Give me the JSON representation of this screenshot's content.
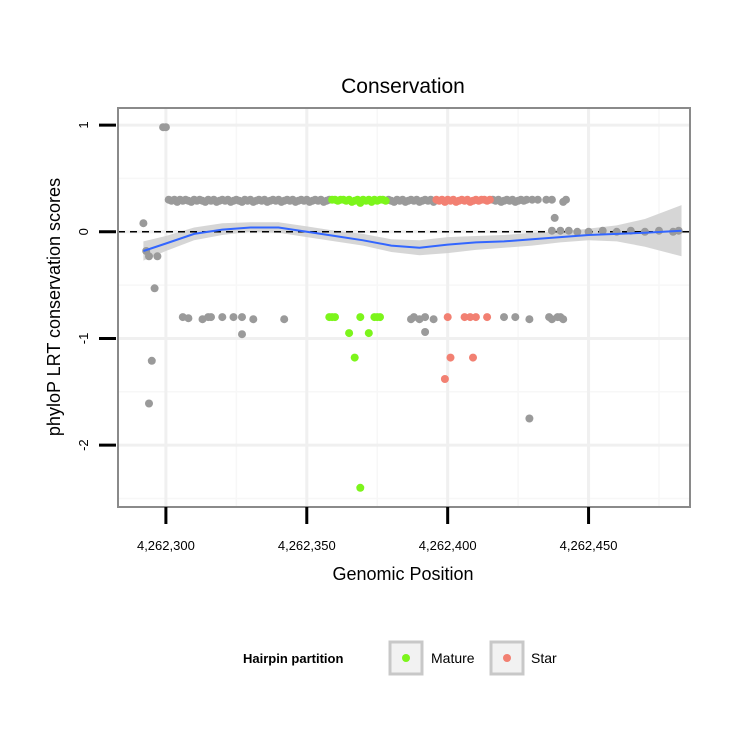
{
  "chart_data": {
    "type": "scatter",
    "title": "Conservation",
    "xlabel": "Genomic Position",
    "ylabel": "phyloP LRT conservation scores",
    "xlim": [
      4262283,
      4262486
    ],
    "ylim": [
      -2.58,
      1.16
    ],
    "x_ticks": [
      4262300,
      4262350,
      4262400,
      4262450
    ],
    "x_tick_labels": [
      "4,262,300",
      "4,262,350",
      "4,262,400",
      "4,262,450"
    ],
    "y_ticks": [
      1,
      0,
      -1,
      -2
    ],
    "y_tick_labels": [
      "1",
      "0",
      "-1",
      "-2"
    ],
    "grid": true,
    "reference_line": {
      "y": 0,
      "style": "dashed",
      "color": "#000000"
    },
    "colors": {
      "other": "#9a9a9a",
      "mature": "#7cf51b",
      "star": "#f28072",
      "smooth": "#3366ff",
      "band": "#cfcfcf"
    },
    "legend": {
      "title": "Hairpin partition",
      "position": "bottom",
      "entries": [
        {
          "label": "Mature",
          "color": "#7cf51b"
        },
        {
          "label": "Star",
          "color": "#f28072"
        }
      ]
    },
    "series": [
      {
        "group": "other",
        "points": [
          [
            4262299,
            0.98
          ],
          [
            4262300,
            0.98
          ],
          [
            4262292,
            0.08
          ],
          [
            4262293,
            -0.18
          ],
          [
            4262294,
            -0.23
          ],
          [
            4262297,
            -0.23
          ],
          [
            4262296,
            -0.53
          ],
          [
            4262295,
            -1.21
          ],
          [
            4262294,
            -1.61
          ],
          [
            4262301,
            0.3
          ],
          [
            4262302,
            0.29
          ],
          [
            4262303,
            0.3
          ],
          [
            4262304,
            0.28
          ],
          [
            4262305,
            0.3
          ],
          [
            4262306,
            0.29
          ],
          [
            4262307,
            0.3
          ],
          [
            4262308,
            0.29
          ],
          [
            4262309,
            0.28
          ],
          [
            4262310,
            0.3
          ],
          [
            4262311,
            0.29
          ],
          [
            4262312,
            0.3
          ],
          [
            4262313,
            0.29
          ],
          [
            4262314,
            0.28
          ],
          [
            4262315,
            0.3
          ],
          [
            4262316,
            0.29
          ],
          [
            4262317,
            0.3
          ],
          [
            4262318,
            0.28
          ],
          [
            4262319,
            0.29
          ],
          [
            4262320,
            0.3
          ],
          [
            4262321,
            0.29
          ],
          [
            4262322,
            0.3
          ],
          [
            4262323,
            0.28
          ],
          [
            4262324,
            0.29
          ],
          [
            4262325,
            0.3
          ],
          [
            4262326,
            0.29
          ],
          [
            4262327,
            0.28
          ],
          [
            4262328,
            0.3
          ],
          [
            4262329,
            0.29
          ],
          [
            4262330,
            0.3
          ],
          [
            4262331,
            0.28
          ],
          [
            4262332,
            0.29
          ],
          [
            4262333,
            0.3
          ],
          [
            4262334,
            0.29
          ],
          [
            4262335,
            0.3
          ],
          [
            4262336,
            0.28
          ],
          [
            4262337,
            0.29
          ],
          [
            4262338,
            0.3
          ],
          [
            4262339,
            0.29
          ],
          [
            4262340,
            0.3
          ],
          [
            4262341,
            0.28
          ],
          [
            4262342,
            0.29
          ],
          [
            4262343,
            0.3
          ],
          [
            4262344,
            0.29
          ],
          [
            4262345,
            0.3
          ],
          [
            4262346,
            0.28
          ],
          [
            4262347,
            0.29
          ],
          [
            4262348,
            0.3
          ],
          [
            4262349,
            0.29
          ],
          [
            4262350,
            0.3
          ],
          [
            4262351,
            0.28
          ],
          [
            4262352,
            0.29
          ],
          [
            4262353,
            0.3
          ],
          [
            4262354,
            0.29
          ],
          [
            4262355,
            0.3
          ],
          [
            4262356,
            0.28
          ],
          [
            4262357,
            0.29
          ],
          [
            4262358,
            0.3
          ],
          [
            4262379,
            0.3
          ],
          [
            4262380,
            0.29
          ],
          [
            4262381,
            0.28
          ],
          [
            4262382,
            0.3
          ],
          [
            4262383,
            0.29
          ],
          [
            4262384,
            0.3
          ],
          [
            4262385,
            0.28
          ],
          [
            4262386,
            0.29
          ],
          [
            4262387,
            0.3
          ],
          [
            4262388,
            0.29
          ],
          [
            4262389,
            0.3
          ],
          [
            4262390,
            0.28
          ],
          [
            4262391,
            0.29
          ],
          [
            4262392,
            0.3
          ],
          [
            4262393,
            0.29
          ],
          [
            4262394,
            0.3
          ],
          [
            4262395,
            0.28
          ],
          [
            4262416,
            0.3
          ],
          [
            4262417,
            0.29
          ],
          [
            4262418,
            0.3
          ],
          [
            4262419,
            0.28
          ],
          [
            4262420,
            0.29
          ],
          [
            4262421,
            0.3
          ],
          [
            4262422,
            0.29
          ],
          [
            4262423,
            0.3
          ],
          [
            4262424,
            0.28
          ],
          [
            4262425,
            0.29
          ],
          [
            4262426,
            0.3
          ],
          [
            4262427,
            0.29
          ],
          [
            4262428,
            0.3
          ],
          [
            4262430,
            0.3
          ],
          [
            4262432,
            0.3
          ],
          [
            4262435,
            0.3
          ],
          [
            4262437,
            0.3
          ],
          [
            4262441,
            0.28
          ],
          [
            4262442,
            0.3
          ],
          [
            4262438,
            0.13
          ],
          [
            4262306,
            -0.8
          ],
          [
            4262308,
            -0.81
          ],
          [
            4262313,
            -0.82
          ],
          [
            4262315,
            -0.8
          ],
          [
            4262316,
            -0.8
          ],
          [
            4262320,
            -0.8
          ],
          [
            4262324,
            -0.8
          ],
          [
            4262327,
            -0.8
          ],
          [
            4262327,
            -0.96
          ],
          [
            4262331,
            -0.82
          ],
          [
            4262342,
            -0.82
          ],
          [
            4262387,
            -0.82
          ],
          [
            4262388,
            -0.8
          ],
          [
            4262390,
            -0.82
          ],
          [
            4262392,
            -0.8
          ],
          [
            4262392,
            -0.94
          ],
          [
            4262395,
            -0.82
          ],
          [
            4262420,
            -0.8
          ],
          [
            4262424,
            -0.8
          ],
          [
            4262429,
            -0.82
          ],
          [
            4262436,
            -0.8
          ],
          [
            4262437,
            -0.82
          ],
          [
            4262439,
            -0.8
          ],
          [
            4262440,
            -0.8
          ],
          [
            4262441,
            -0.82
          ],
          [
            4262429,
            -1.75
          ],
          [
            4262437,
            0.01
          ],
          [
            4262440,
            0.01
          ],
          [
            4262443,
            0.01
          ],
          [
            4262446,
            0.0
          ],
          [
            4262450,
            0.0
          ],
          [
            4262455,
            0.01
          ],
          [
            4262460,
            0.0
          ],
          [
            4262465,
            0.01
          ],
          [
            4262470,
            0.0
          ],
          [
            4262475,
            0.01
          ],
          [
            4262480,
            0.0
          ],
          [
            4262482,
            0.01
          ]
        ]
      },
      {
        "group": "mature",
        "points": [
          [
            4262359,
            0.3
          ],
          [
            4262360,
            0.3
          ],
          [
            4262361,
            0.29
          ],
          [
            4262362,
            0.3
          ],
          [
            4262363,
            0.3
          ],
          [
            4262364,
            0.29
          ],
          [
            4262365,
            0.3
          ],
          [
            4262366,
            0.28
          ],
          [
            4262367,
            0.29
          ],
          [
            4262368,
            0.3
          ],
          [
            4262369,
            0.27
          ],
          [
            4262370,
            0.3
          ],
          [
            4262371,
            0.29
          ],
          [
            4262372,
            0.3
          ],
          [
            4262373,
            0.28
          ],
          [
            4262374,
            0.3
          ],
          [
            4262375,
            0.29
          ],
          [
            4262376,
            0.3
          ],
          [
            4262377,
            0.3
          ],
          [
            4262378,
            0.29
          ],
          [
            4262358,
            -0.8
          ],
          [
            4262359,
            -0.8
          ],
          [
            4262360,
            -0.8
          ],
          [
            4262369,
            -0.8
          ],
          [
            4262374,
            -0.8
          ],
          [
            4262375,
            -0.8
          ],
          [
            4262376,
            -0.8
          ],
          [
            4262365,
            -0.95
          ],
          [
            4262372,
            -0.95
          ],
          [
            4262367,
            -1.18
          ],
          [
            4262369,
            -2.4
          ]
        ]
      },
      {
        "group": "star",
        "points": [
          [
            4262396,
            0.3
          ],
          [
            4262397,
            0.29
          ],
          [
            4262398,
            0.3
          ],
          [
            4262399,
            0.28
          ],
          [
            4262400,
            0.3
          ],
          [
            4262401,
            0.29
          ],
          [
            4262402,
            0.3
          ],
          [
            4262403,
            0.28
          ],
          [
            4262404,
            0.29
          ],
          [
            4262405,
            0.3
          ],
          [
            4262406,
            0.29
          ],
          [
            4262407,
            0.3
          ],
          [
            4262408,
            0.28
          ],
          [
            4262409,
            0.29
          ],
          [
            4262410,
            0.3
          ],
          [
            4262411,
            0.29
          ],
          [
            4262412,
            0.3
          ],
          [
            4262413,
            0.3
          ],
          [
            4262414,
            0.29
          ],
          [
            4262415,
            0.3
          ],
          [
            4262400,
            -0.8
          ],
          [
            4262406,
            -0.8
          ],
          [
            4262408,
            -0.8
          ],
          [
            4262410,
            -0.8
          ],
          [
            4262414,
            -0.8
          ],
          [
            4262401,
            -1.18
          ],
          [
            4262409,
            -1.18
          ],
          [
            4262399,
            -1.38
          ]
        ]
      }
    ],
    "smooth_line": {
      "x": [
        4262292,
        4262300,
        4262310,
        4262320,
        4262330,
        4262340,
        4262350,
        4262360,
        4262370,
        4262380,
        4262390,
        4262400,
        4262410,
        4262420,
        4262430,
        4262440,
        4262450,
        4262460,
        4262470,
        4262483
      ],
      "y": [
        -0.18,
        -0.11,
        -0.02,
        0.02,
        0.04,
        0.04,
        0.0,
        -0.04,
        -0.08,
        -0.13,
        -0.15,
        -0.12,
        -0.1,
        -0.09,
        -0.07,
        -0.05,
        -0.03,
        -0.02,
        -0.01,
        0.01
      ],
      "lower": [
        -0.27,
        -0.18,
        -0.08,
        -0.03,
        0.0,
        -0.01,
        -0.05,
        -0.09,
        -0.13,
        -0.19,
        -0.22,
        -0.2,
        -0.17,
        -0.15,
        -0.13,
        -0.1,
        -0.08,
        -0.09,
        -0.14,
        -0.23
      ],
      "upper": [
        -0.09,
        -0.04,
        0.04,
        0.08,
        0.09,
        0.09,
        0.05,
        0.01,
        -0.02,
        -0.07,
        -0.08,
        -0.05,
        -0.04,
        -0.03,
        -0.01,
        0.0,
        0.03,
        0.06,
        0.12,
        0.25
      ]
    }
  }
}
